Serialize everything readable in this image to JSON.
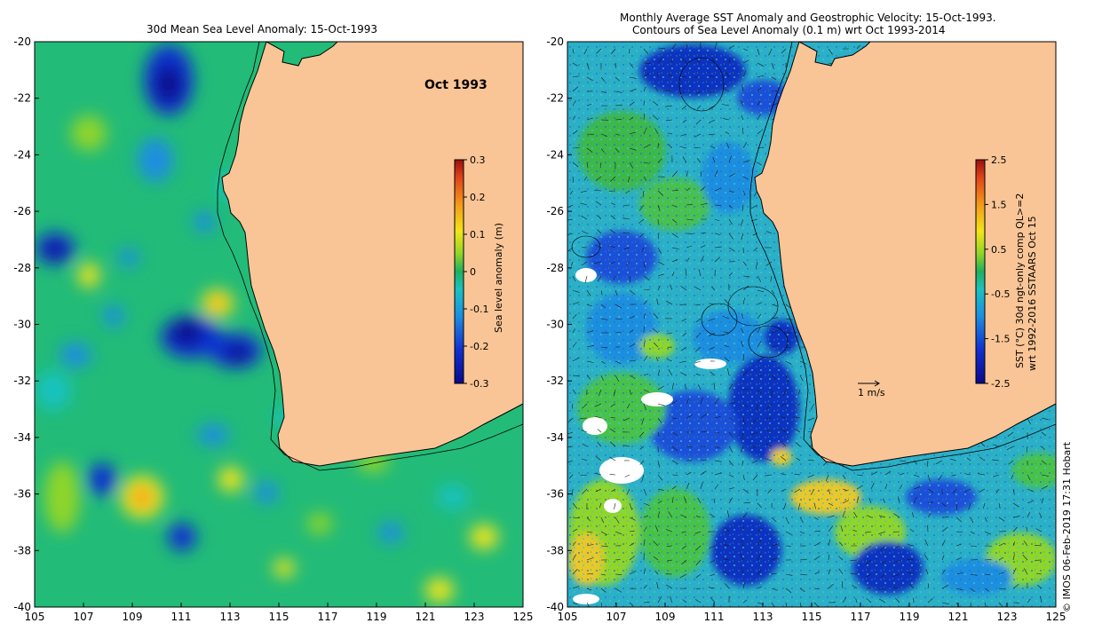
{
  "left_panel": {
    "title": "30d Mean Sea Level Anomaly: 15-Oct-1993",
    "month_label": "Oct 1993",
    "colorbar": {
      "label": "Sea level anomaly (m)",
      "ticks": [
        "0.3",
        "0.2",
        "0.1",
        "0",
        "-0.1",
        "-0.2",
        "-0.3"
      ]
    }
  },
  "right_panel": {
    "title_line1": "Monthly Average SST Anomaly  and Geostrophic Velocity: 15-Oct-1993.",
    "title_line2": "Contours of Sea Level Anomaly (0.1 m) wrt Oct 1993-2014",
    "colorbar": {
      "label_line1": "SST (°C) 30d ngt-only comp QL>=2",
      "label_line2": "wrt 1992-2016 SSTAARS Oct 15",
      "ticks": [
        "2.5",
        "1.5",
        "0.5",
        "-0.5",
        "-1.5",
        "-2.5"
      ]
    },
    "scale_arrow_label": "1 m/s"
  },
  "axes": {
    "lon_ticks": [
      "105",
      "107",
      "109",
      "111",
      "113",
      "115",
      "117",
      "119",
      "121",
      "123",
      "125"
    ],
    "lat_ticks": [
      "-20",
      "-22",
      "-24",
      "-26",
      "-28",
      "-30",
      "-32",
      "-34",
      "-36",
      "-38",
      "-40"
    ]
  },
  "credit": "© IMOS 06-Feb-2019 17:31 Hobart",
  "colors": {
    "land": "#f9c596",
    "ocean_base": "#22b873",
    "ocean_green": "#1fae3c"
  }
}
